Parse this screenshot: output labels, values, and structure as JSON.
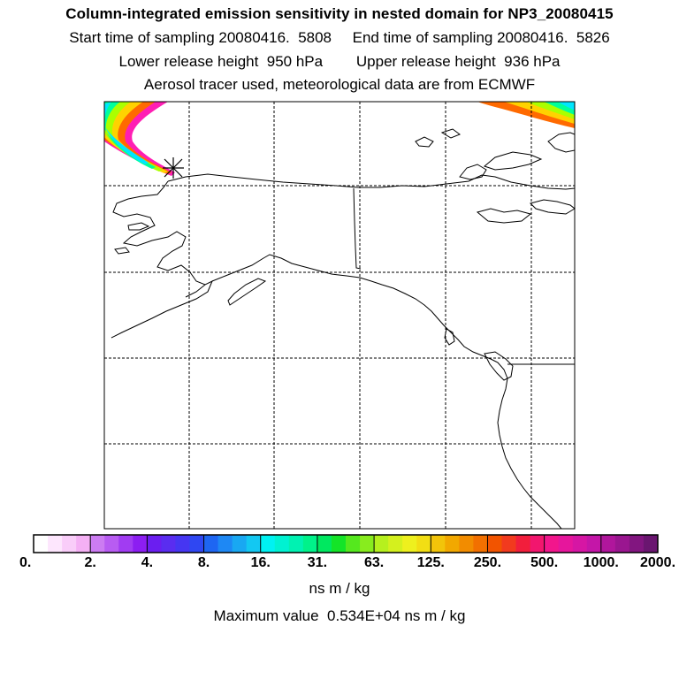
{
  "header": {
    "title": "Column-integrated emission sensitivity in nested domain for NP3_20080415",
    "line2": "Start time of sampling 20080416.  5808     End time of sampling 20080416.  5826",
    "line3": "Lower release height  950 hPa        Upper release height  936 hPa",
    "line4": "Aerosol tracer used, meteorological data are from ECMWF"
  },
  "colorbar": {
    "tick_labels": [
      "0.",
      "2.",
      "4.",
      "8.",
      "16.",
      "31.",
      "63.",
      "125.",
      "250.",
      "500.",
      "1000.",
      "2000."
    ],
    "colors": [
      "#ffffff",
      "#fde6fd",
      "#f9cdf9",
      "#f4b0f4",
      "#cc7cf2",
      "#b85cf2",
      "#a13cf2",
      "#8c1ef2",
      "#6b1ef0",
      "#5a2df0",
      "#4636f2",
      "#2f47f2",
      "#1e66f2",
      "#1e88f4",
      "#19a8f2",
      "#13c8f2",
      "#00f2f2",
      "#00f2d2",
      "#00f2b2",
      "#00f28a",
      "#00e860",
      "#14e428",
      "#55e81e",
      "#88ec1e",
      "#b6f01e",
      "#d4f01e",
      "#eef01e",
      "#f2de14",
      "#f2c40a",
      "#f2a800",
      "#f28c00",
      "#f27000",
      "#f25400",
      "#f23a1e",
      "#f21e3c",
      "#f2166e",
      "#f2168c",
      "#e6169c",
      "#d616a4",
      "#c416a8",
      "#b0169c",
      "#9a1690",
      "#821680",
      "#6a1670"
    ],
    "units": "ns m / kg"
  },
  "max_value_text": "Maximum value  0.534E+04 ns m / kg",
  "map": {
    "plume_colors": [
      "#ff1eb4",
      "#ff6a00",
      "#ffd200",
      "#aaff00",
      "#00ff9a",
      "#00e6ff",
      "#3c7dff",
      "#a050ff",
      "#ffffff"
    ]
  }
}
